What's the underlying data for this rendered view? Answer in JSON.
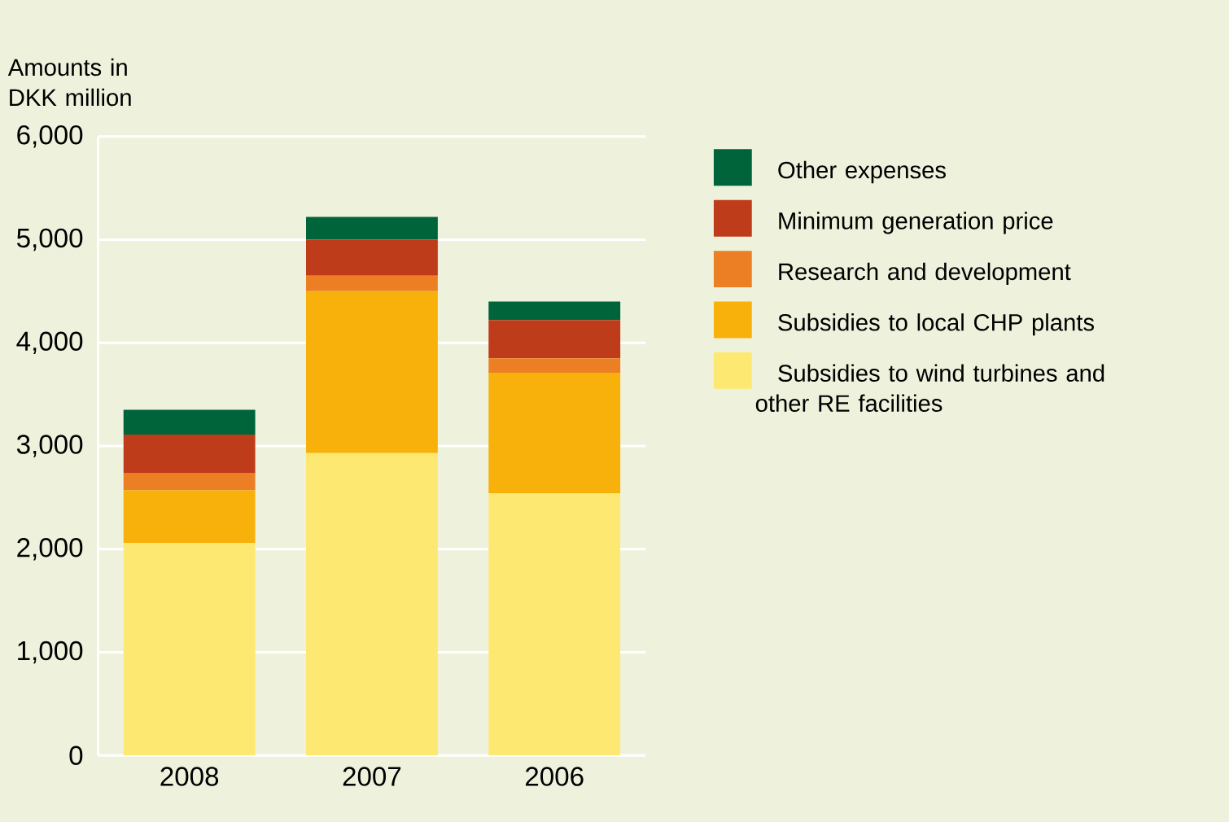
{
  "chart_data": {
    "type": "bar",
    "stacked": true,
    "ylabel": "Amounts in DKK million",
    "categories": [
      "2008",
      "2007",
      "2006"
    ],
    "series": [
      {
        "name": "Subsidies to wind turbines and other RE facilities",
        "color": "#fde971",
        "values": [
          2060,
          2930,
          2540
        ]
      },
      {
        "name": "Subsidies to local CHP plants",
        "color": "#f8b10b",
        "values": [
          510,
          1570,
          1170
        ]
      },
      {
        "name": "Research and development",
        "color": "#ec7f24",
        "values": [
          170,
          150,
          140
        ]
      },
      {
        "name": "Minimum generation price",
        "color": "#bf3c1a",
        "values": [
          370,
          350,
          370
        ]
      },
      {
        "name": "Other expenses",
        "color": "#00643b",
        "values": [
          240,
          220,
          180
        ]
      }
    ],
    "ylim": [
      0,
      6000
    ],
    "yticks": [
      0,
      {
        "value": 1000,
        "label": "1,000"
      },
      {
        "value": 2000,
        "label": "2,000"
      },
      {
        "value": 3000,
        "label": "3,000"
      },
      {
        "value": 4000,
        "label": "4,000"
      },
      {
        "value": 5000,
        "label": "5,000"
      },
      {
        "value": 6000,
        "label": "6,000"
      }
    ],
    "grid": "y",
    "legend": "right"
  }
}
